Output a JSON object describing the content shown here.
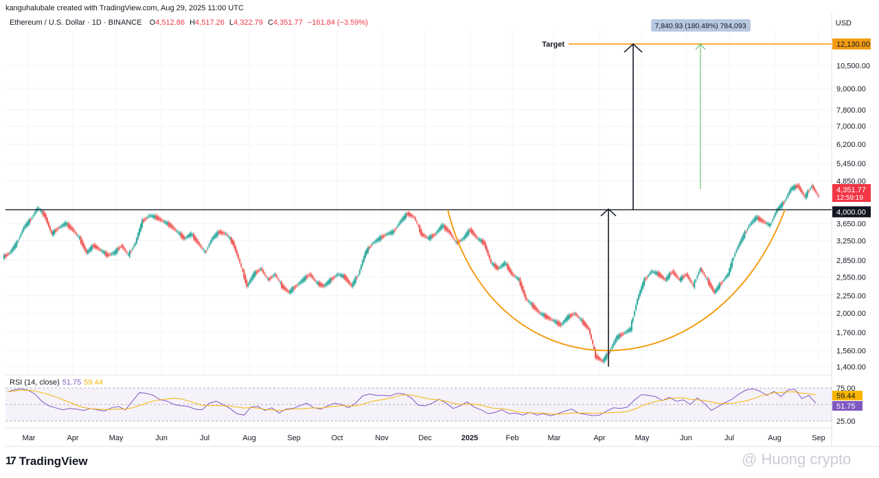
{
  "header": {
    "credit": "kanguhalubale created with TradingView.com, Aug 29, 2025 11:00 UTC",
    "symbol": "Ethereum / U.S. Dollar · 1D · BINANCE",
    "ohlc": {
      "o_label": "O",
      "o": "4,512.86",
      "h_label": "H",
      "h": "4,517.26",
      "l_label": "L",
      "l": "4,322.79",
      "c_label": "C",
      "c": "4,351.77",
      "change": "−161.84 (−3.59%)"
    },
    "currency": "USD"
  },
  "chart_data": {
    "type": "candlestick",
    "x_ticks": [
      "Mar",
      "Apr",
      "May",
      "Jun",
      "Jul",
      "Aug",
      "Sep",
      "Oct",
      "Nov",
      "Dec",
      "2025",
      "Feb",
      "Mar",
      "Apr",
      "May",
      "Jun",
      "Jul",
      "Aug",
      "Sep"
    ],
    "y_scale": "log",
    "y_ticks": [
      "10,500.00",
      "9,000.00",
      "7,800.00",
      "7,000.00",
      "6,200.00",
      "5,450.00",
      "4,850.00",
      "3,650.00",
      "3,250.00",
      "2,850.00",
      "2,550.00",
      "2,250.00",
      "2,000.00",
      "1,760.00",
      "1,560.00",
      "1,400.00"
    ],
    "y_tick_values": [
      10500,
      9000,
      7800,
      7000,
      6200,
      5450,
      4850,
      3650,
      3250,
      2850,
      2550,
      2250,
      2000,
      1760,
      1560,
      1400
    ],
    "price_series": [
      3000,
      3200,
      3550,
      3750,
      4050,
      3850,
      3400,
      3550,
      3650,
      3500,
      3300,
      3000,
      3150,
      3050,
      2950,
      3000,
      3150,
      2950,
      3200,
      3700,
      3850,
      3800,
      3700,
      3600,
      3450,
      3300,
      3400,
      3200,
      3000,
      3300,
      3450,
      3400,
      3200,
      2800,
      2400,
      2600,
      2700,
      2500,
      2600,
      2400,
      2300,
      2400,
      2500,
      2600,
      2450,
      2400,
      2500,
      2600,
      2550,
      2400,
      2600,
      3000,
      3200,
      3300,
      3400,
      3450,
      3700,
      3900,
      3800,
      3400,
      3300,
      3400,
      3600,
      3450,
      3200,
      3300,
      3500,
      3300,
      3200,
      2800,
      2700,
      2800,
      2600,
      2500,
      2200,
      2100,
      2000,
      1950,
      1900,
      1850,
      1950,
      2000,
      1900,
      1800,
      1500,
      1450,
      1550,
      1700,
      1750,
      1800,
      2200,
      2500,
      2650,
      2600,
      2500,
      2650,
      2500,
      2600,
      2400,
      2700,
      2500,
      2300,
      2450,
      2600,
      3000,
      3300,
      3600,
      3800,
      3700,
      3600,
      4000,
      4200,
      4600,
      4700,
      4350,
      4700,
      4350
    ],
    "rsi_series": [
      69,
      72,
      74,
      72,
      66,
      55,
      48,
      45,
      42,
      44,
      43,
      41,
      44,
      42,
      40,
      45,
      47,
      42,
      55,
      68,
      67,
      64,
      57,
      55,
      50,
      48,
      47,
      43,
      42,
      52,
      55,
      50,
      44,
      36,
      34,
      46,
      47,
      41,
      45,
      37,
      43,
      44,
      48,
      52,
      45,
      43,
      48,
      52,
      50,
      45,
      52,
      63,
      66,
      64,
      64,
      63,
      67,
      66,
      60,
      49,
      48,
      52,
      58,
      52,
      44,
      48,
      54,
      46,
      42,
      36,
      38,
      42,
      36,
      37,
      34,
      38,
      34,
      36,
      33,
      36,
      40,
      43,
      37,
      35,
      33,
      34,
      40,
      45,
      44,
      46,
      57,
      65,
      64,
      62,
      56,
      61,
      55,
      57,
      50,
      60,
      52,
      41,
      47,
      53,
      58,
      66,
      72,
      74,
      70,
      64,
      70,
      62,
      72,
      73,
      59,
      64,
      52
    ],
    "rsi_levels": [
      75,
      50,
      25
    ],
    "rsi_labels": [
      "75.00",
      "25.00"
    ],
    "labels": {
      "target": "Target",
      "target_value": "12,130.00",
      "neckline_value": "4,000.00",
      "last_price": "4,351.77",
      "countdown": "12:59:19",
      "measure": "7,840.93 (180.48%) 784,093",
      "rsi_title": "RSI (14, close)",
      "rsi_value": "51.75",
      "rsi_ma": "59.44"
    },
    "levels": {
      "target": 12130,
      "neckline": 4000,
      "cup_bottom": 1400,
      "last": 4351.77
    },
    "colors": {
      "up": "#26a69a",
      "down": "#ef5350",
      "cup": "#f39c12",
      "target": "#f39c12",
      "measure": "#4caf50",
      "rsi": "#7e57c2",
      "rsi_ma": "#f7b500",
      "last": "#f23645"
    }
  },
  "footer": {
    "brand": "TradingView",
    "brand_logo": "17",
    "watermark": "@ Huong crypto"
  }
}
